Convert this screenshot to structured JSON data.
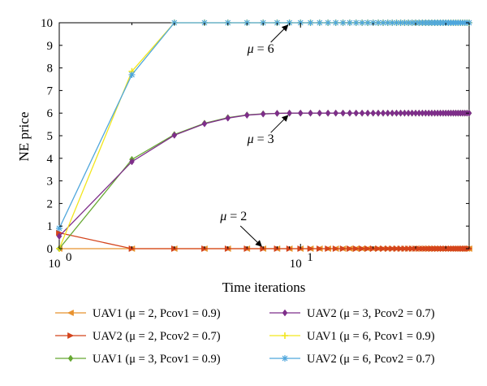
{
  "chart_data": {
    "type": "line",
    "xscale": "log",
    "xlabel": "Time iterations",
    "ylabel": "NE price",
    "xlim": [
      1,
      50
    ],
    "ylim": [
      0,
      10
    ],
    "x_ticks": [
      {
        "value": 1,
        "base": "10",
        "exp": "0"
      },
      {
        "value": 10,
        "base": "10",
        "exp": "1"
      }
    ],
    "y_ticks": [
      "0",
      "1",
      "2",
      "3",
      "4",
      "5",
      "6",
      "7",
      "8",
      "9",
      "10"
    ],
    "x": [
      1,
      2,
      3,
      4,
      5,
      6,
      7,
      8,
      9,
      10,
      11,
      12,
      13,
      14,
      15,
      16,
      17,
      18,
      19,
      20,
      21,
      22,
      23,
      24,
      25,
      26,
      27,
      28,
      29,
      30,
      31,
      32,
      33,
      34,
      35,
      36,
      37,
      38,
      39,
      40,
      41,
      42,
      43,
      44,
      45,
      46,
      47,
      48,
      49,
      50
    ],
    "series": [
      {
        "name": "UAV1 (μ = 2, Pcov1 = 0.9)",
        "color": "#e8922e",
        "marker": "triangle-left",
        "values": [
          0.0,
          0,
          0,
          0,
          0,
          0,
          0,
          0,
          0,
          0,
          0,
          0,
          0,
          0,
          0,
          0,
          0,
          0,
          0,
          0,
          0,
          0,
          0,
          0,
          0,
          0,
          0,
          0,
          0,
          0,
          0,
          0,
          0,
          0,
          0,
          0,
          0,
          0,
          0,
          0,
          0,
          0,
          0,
          0,
          0,
          0,
          0,
          0,
          0,
          0
        ]
      },
      {
        "name": "UAV2 (μ = 2, Pcov2 = 0.7)",
        "color": "#d4441c",
        "marker": "triangle-right",
        "values": [
          0.7,
          0,
          0,
          0,
          0,
          0,
          0,
          0,
          0,
          0,
          0,
          0,
          0,
          0,
          0,
          0,
          0,
          0,
          0,
          0,
          0,
          0,
          0,
          0,
          0,
          0,
          0,
          0,
          0,
          0,
          0,
          0,
          0,
          0,
          0,
          0,
          0,
          0,
          0,
          0,
          0,
          0,
          0,
          0,
          0,
          0,
          0,
          0,
          0,
          0
        ]
      },
      {
        "name": "UAV1 (μ = 3, Pcov1 = 0.9)",
        "color": "#66a832",
        "marker": "diamond",
        "values": [
          0.0,
          3.95,
          5.05,
          5.55,
          5.8,
          5.92,
          5.97,
          5.99,
          6,
          6,
          6,
          6,
          6,
          6,
          6,
          6,
          6,
          6,
          6,
          6,
          6,
          6,
          6,
          6,
          6,
          6,
          6,
          6,
          6,
          6,
          6,
          6,
          6,
          6,
          6,
          6,
          6,
          6,
          6,
          6,
          6,
          6,
          6,
          6,
          6,
          6,
          6,
          6,
          6,
          6
        ]
      },
      {
        "name": "UAV2 (μ = 3, Pcov2 = 0.7)",
        "color": "#7e2e8a",
        "marker": "diamond",
        "values": [
          0.55,
          3.85,
          5.02,
          5.53,
          5.78,
          5.91,
          5.96,
          5.99,
          6,
          6,
          6,
          6,
          6,
          6,
          6,
          6,
          6,
          6,
          6,
          6,
          6,
          6,
          6,
          6,
          6,
          6,
          6,
          6,
          6,
          6,
          6,
          6,
          6,
          6,
          6,
          6,
          6,
          6,
          6,
          6,
          6,
          6,
          6,
          6,
          6,
          6,
          6,
          6,
          6,
          6
        ]
      },
      {
        "name": "UAV1 (μ = 6, Pcov1 = 0.9)",
        "color": "#f2e61e",
        "marker": "plus",
        "values": [
          0.0,
          7.85,
          10,
          10,
          10,
          10,
          10,
          10,
          10,
          10,
          10,
          10,
          10,
          10,
          10,
          10,
          10,
          10,
          10,
          10,
          10,
          10,
          10,
          10,
          10,
          10,
          10,
          10,
          10,
          10,
          10,
          10,
          10,
          10,
          10,
          10,
          10,
          10,
          10,
          10,
          10,
          10,
          10,
          10,
          10,
          10,
          10,
          10,
          10,
          10
        ]
      },
      {
        "name": "UAV2 (μ = 6, Pcov2 = 0.7)",
        "color": "#4ea6dc",
        "marker": "star",
        "values": [
          0.9,
          7.7,
          10,
          10,
          10,
          10,
          10,
          10,
          10,
          10,
          10,
          10,
          10,
          10,
          10,
          10,
          10,
          10,
          10,
          10,
          10,
          10,
          10,
          10,
          10,
          10,
          10,
          10,
          10,
          10,
          10,
          10,
          10,
          10,
          10,
          10,
          10,
          10,
          10,
          10,
          10,
          10,
          10,
          10,
          10,
          10,
          10,
          10,
          10,
          10
        ]
      }
    ],
    "annotations": [
      {
        "symbol": "μ",
        "rest": " = 6",
        "target": [
          9,
          10
        ]
      },
      {
        "symbol": "μ",
        "rest": " = 3",
        "target": [
          9,
          6
        ]
      },
      {
        "symbol": "μ",
        "rest": " = 2",
        "target": [
          7,
          0
        ]
      }
    ],
    "legend_placement": "bottom",
    "grid": false
  }
}
